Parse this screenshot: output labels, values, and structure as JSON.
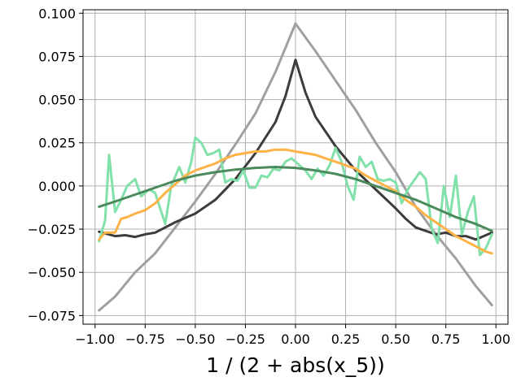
{
  "chart_data": {
    "type": "line",
    "title": "",
    "xlabel": "1 / (2 + abs(x_5))",
    "ylabel": "",
    "xlim": [
      -1.06,
      1.06
    ],
    "ylim": [
      -0.08,
      0.102
    ],
    "grid": true,
    "xticks": [
      -1.0,
      -0.75,
      -0.5,
      -0.25,
      0.0,
      0.25,
      0.5,
      0.75,
      1.0
    ],
    "xtick_labels": [
      "−1.00",
      "−0.75",
      "−0.50",
      "−0.25",
      "0.00",
      "0.25",
      "0.50",
      "0.75",
      "1.00"
    ],
    "yticks": [
      0.1,
      0.075,
      0.05,
      0.025,
      0.0,
      -0.025,
      -0.05,
      -0.075
    ],
    "ytick_labels": [
      "0.100",
      "0.075",
      "0.050",
      "0.025",
      "0.000",
      "−0.025",
      "−0.050",
      "−0.075"
    ],
    "series": [
      {
        "color": "#a0a0a0",
        "x": [
          -0.98,
          -0.9,
          -0.8,
          -0.7,
          -0.6,
          -0.5,
          -0.4,
          -0.3,
          -0.2,
          -0.1,
          0.0,
          0.1,
          0.2,
          0.3,
          0.4,
          0.5,
          0.6,
          0.7,
          0.8,
          0.9,
          0.98
        ],
        "y": [
          -0.072,
          -0.064,
          -0.05,
          -0.039,
          -0.024,
          -0.009,
          0.007,
          0.024,
          0.042,
          0.066,
          0.094,
          0.078,
          0.061,
          0.044,
          0.025,
          0.008,
          -0.012,
          -0.028,
          -0.042,
          -0.058,
          -0.069
        ]
      },
      {
        "color": "#3c3c3c",
        "x": [
          -0.98,
          -0.9,
          -0.85,
          -0.8,
          -0.75,
          -0.7,
          -0.65,
          -0.6,
          -0.5,
          -0.4,
          -0.3,
          -0.2,
          -0.1,
          -0.05,
          0.0,
          0.05,
          0.1,
          0.2,
          0.3,
          0.4,
          0.5,
          0.55,
          0.6,
          0.7,
          0.75,
          0.8,
          0.85,
          0.9,
          0.98
        ],
        "y": [
          -0.0265,
          -0.029,
          -0.0285,
          -0.0295,
          -0.028,
          -0.027,
          -0.024,
          -0.021,
          -0.016,
          -0.008,
          0.004,
          0.019,
          0.037,
          0.052,
          0.073,
          0.054,
          0.04,
          0.023,
          0.009,
          -0.002,
          -0.013,
          -0.019,
          -0.024,
          -0.028,
          -0.027,
          -0.029,
          -0.029,
          -0.031,
          -0.027
        ]
      },
      {
        "color": "#82e0aa",
        "x": [
          -0.98,
          -0.95,
          -0.93,
          -0.9,
          -0.87,
          -0.84,
          -0.8,
          -0.77,
          -0.73,
          -0.7,
          -0.65,
          -0.62,
          -0.58,
          -0.55,
          -0.52,
          -0.5,
          -0.47,
          -0.44,
          -0.41,
          -0.38,
          -0.35,
          -0.32,
          -0.29,
          -0.26,
          -0.23,
          -0.2,
          -0.17,
          -0.14,
          -0.11,
          -0.08,
          -0.05,
          -0.02,
          0.02,
          0.05,
          0.08,
          0.11,
          0.14,
          0.17,
          0.2,
          0.23,
          0.26,
          0.29,
          0.32,
          0.35,
          0.38,
          0.41,
          0.44,
          0.47,
          0.5,
          0.53,
          0.56,
          0.59,
          0.62,
          0.65,
          0.68,
          0.71,
          0.74,
          0.77,
          0.8,
          0.83,
          0.86,
          0.89,
          0.92,
          0.95,
          0.98
        ],
        "y": [
          -0.032,
          -0.02,
          0.018,
          -0.015,
          -0.008,
          0.0,
          0.004,
          -0.006,
          -0.002,
          -0.004,
          -0.022,
          0.0,
          0.011,
          0.002,
          0.014,
          0.028,
          0.025,
          0.018,
          0.019,
          0.021,
          0.002,
          0.004,
          0.003,
          0.009,
          -0.001,
          -0.001,
          0.006,
          0.005,
          0.01,
          0.009,
          0.014,
          0.016,
          0.012,
          0.009,
          0.004,
          0.01,
          0.006,
          0.012,
          0.022,
          0.014,
          0.0,
          -0.008,
          0.017,
          0.011,
          0.014,
          0.004,
          0.003,
          0.004,
          0.002,
          -0.01,
          -0.002,
          0.003,
          0.008,
          0.004,
          -0.025,
          -0.033,
          0.0,
          -0.018,
          0.006,
          -0.028,
          -0.015,
          -0.006,
          -0.04,
          -0.036,
          -0.028
        ]
      },
      {
        "color": "#ffb347",
        "x": [
          -0.98,
          -0.95,
          -0.9,
          -0.87,
          -0.84,
          -0.8,
          -0.75,
          -0.7,
          -0.65,
          -0.6,
          -0.55,
          -0.5,
          -0.45,
          -0.4,
          -0.35,
          -0.3,
          -0.25,
          -0.2,
          -0.15,
          -0.1,
          -0.05,
          0.0,
          0.05,
          0.1,
          0.15,
          0.2,
          0.25,
          0.3,
          0.35,
          0.4,
          0.45,
          0.5,
          0.55,
          0.6,
          0.65,
          0.7,
          0.75,
          0.8,
          0.85,
          0.9,
          0.95,
          0.98
        ],
        "y": [
          -0.031,
          -0.027,
          -0.027,
          -0.019,
          -0.018,
          -0.016,
          -0.014,
          -0.01,
          -0.004,
          0.001,
          0.006,
          0.009,
          0.011,
          0.013,
          0.016,
          0.018,
          0.019,
          0.02,
          0.02,
          0.021,
          0.021,
          0.02,
          0.019,
          0.018,
          0.016,
          0.014,
          0.012,
          0.01,
          0.006,
          0.003,
          0.0,
          -0.003,
          -0.008,
          -0.012,
          -0.017,
          -0.021,
          -0.025,
          -0.029,
          -0.032,
          -0.035,
          -0.038,
          -0.039
        ]
      },
      {
        "color": "#4a8a5c",
        "x": [
          -0.98,
          -0.9,
          -0.8,
          -0.7,
          -0.6,
          -0.5,
          -0.4,
          -0.3,
          -0.2,
          -0.1,
          0.0,
          0.1,
          0.2,
          0.3,
          0.4,
          0.5,
          0.6,
          0.7,
          0.8,
          0.9,
          0.98
        ],
        "y": [
          -0.012,
          -0.009,
          -0.005,
          -0.001,
          0.003,
          0.006,
          0.008,
          0.0095,
          0.0105,
          0.011,
          0.0105,
          0.009,
          0.007,
          0.004,
          0.0,
          -0.004,
          -0.008,
          -0.013,
          -0.018,
          -0.022,
          -0.026
        ]
      }
    ]
  }
}
